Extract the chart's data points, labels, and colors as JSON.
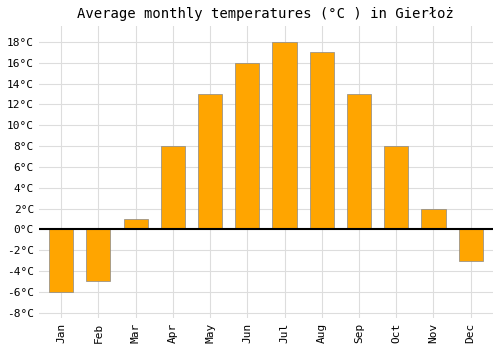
{
  "title": "Average monthly temperatures (°C ) in Gierłoż",
  "months": [
    "Jan",
    "Feb",
    "Mar",
    "Apr",
    "May",
    "Jun",
    "Jul",
    "Aug",
    "Sep",
    "Oct",
    "Nov",
    "Dec"
  ],
  "values": [
    -6,
    -5,
    1,
    8,
    13,
    16,
    18,
    17,
    13,
    8,
    2,
    -3
  ],
  "bar_color": "#FFA500",
  "bar_edge_color": "#888888",
  "ylim": [
    -8.5,
    19.5
  ],
  "yticks": [
    -8,
    -6,
    -4,
    -2,
    0,
    2,
    4,
    6,
    8,
    10,
    12,
    14,
    16,
    18
  ],
  "background_color": "#ffffff",
  "grid_color": "#dddddd",
  "title_fontsize": 10,
  "tick_fontsize": 8,
  "bar_width": 0.65
}
